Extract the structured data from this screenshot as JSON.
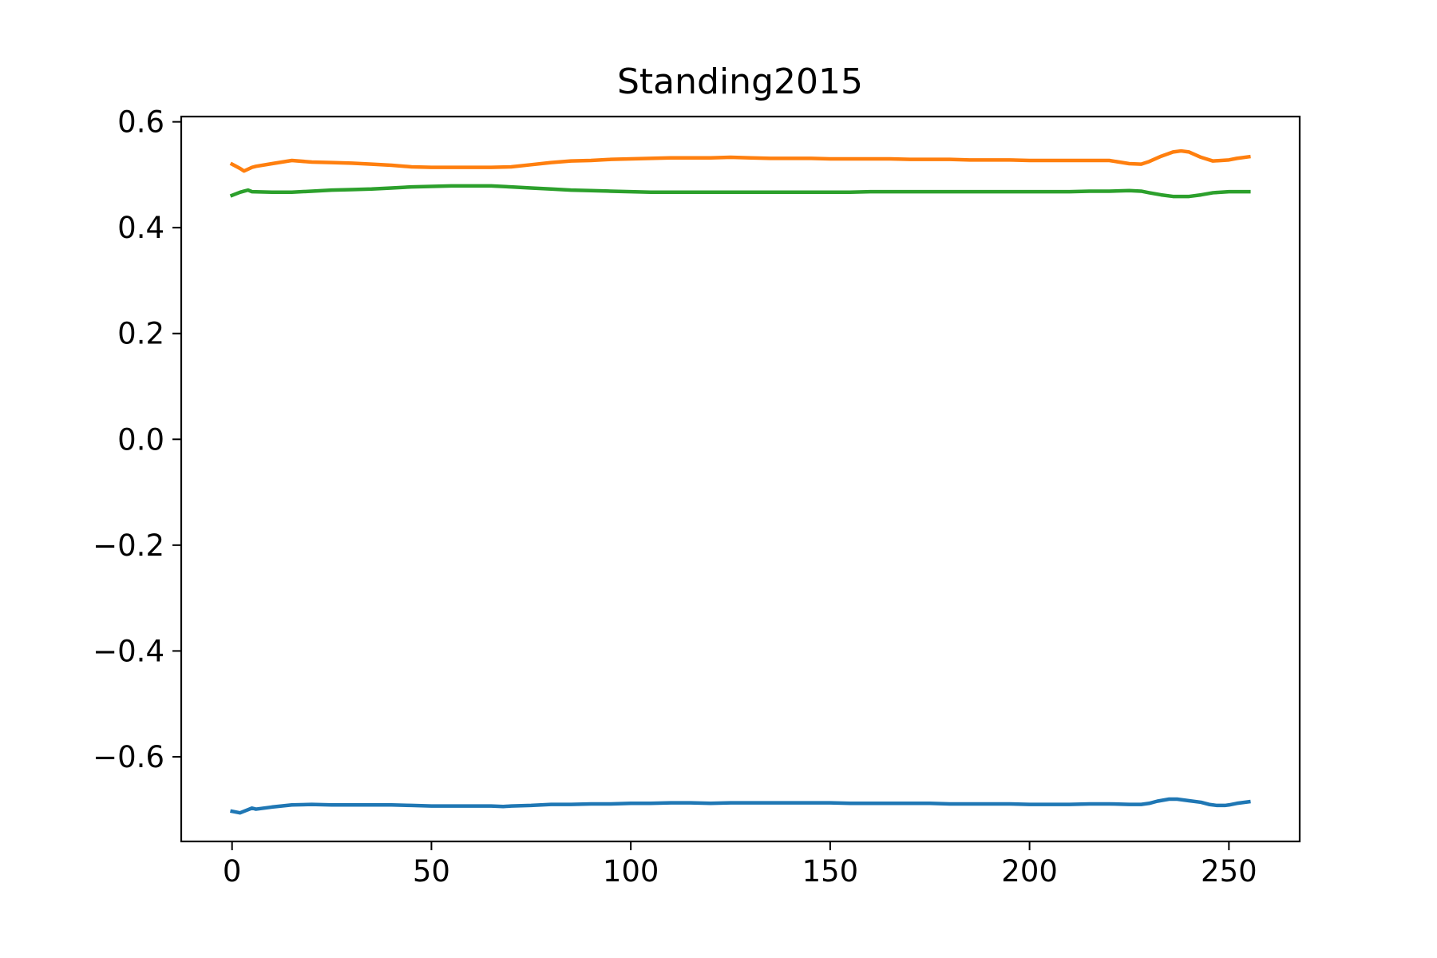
{
  "chart_data": {
    "type": "line",
    "title": "Standing2015",
    "xlabel": "",
    "ylabel": "",
    "xlim": [
      -12.75,
      267.75
    ],
    "ylim": [
      -0.76,
      0.61
    ],
    "xticks": [
      0,
      50,
      100,
      150,
      200,
      250
    ],
    "xtick_labels": [
      "0",
      "50",
      "100",
      "150",
      "200",
      "250"
    ],
    "yticks": [
      -0.6,
      -0.4,
      -0.2,
      0.0,
      0.2,
      0.4,
      0.6
    ],
    "ytick_labels": [
      "−0.6",
      "−0.4",
      "−0.2",
      "0.0",
      "0.2",
      "0.4",
      "0.6"
    ],
    "grid": false,
    "legend": "none",
    "series": [
      {
        "color": "#1f77b4",
        "x": [
          0,
          2,
          3,
          5,
          6,
          10,
          15,
          20,
          25,
          30,
          35,
          40,
          45,
          50,
          55,
          60,
          65,
          68,
          70,
          75,
          80,
          85,
          90,
          95,
          100,
          105,
          110,
          115,
          120,
          125,
          130,
          135,
          140,
          145,
          150,
          155,
          160,
          165,
          170,
          175,
          180,
          185,
          190,
          195,
          200,
          205,
          210,
          215,
          220,
          225,
          228,
          230,
          232,
          235,
          237,
          240,
          243,
          245,
          247,
          249,
          250,
          252,
          255
        ],
        "y": [
          -0.703,
          -0.706,
          -0.703,
          -0.697,
          -0.699,
          -0.695,
          -0.691,
          -0.69,
          -0.691,
          -0.691,
          -0.691,
          -0.691,
          -0.692,
          -0.693,
          -0.693,
          -0.693,
          -0.693,
          -0.694,
          -0.693,
          -0.692,
          -0.69,
          -0.69,
          -0.689,
          -0.689,
          -0.688,
          -0.688,
          -0.687,
          -0.687,
          -0.688,
          -0.687,
          -0.687,
          -0.687,
          -0.687,
          -0.687,
          -0.687,
          -0.688,
          -0.688,
          -0.688,
          -0.688,
          -0.688,
          -0.689,
          -0.689,
          -0.689,
          -0.689,
          -0.69,
          -0.69,
          -0.69,
          -0.689,
          -0.689,
          -0.69,
          -0.69,
          -0.688,
          -0.684,
          -0.68,
          -0.68,
          -0.683,
          -0.686,
          -0.69,
          -0.692,
          -0.692,
          -0.691,
          -0.688,
          -0.685
        ]
      },
      {
        "color": "#ff7f0e",
        "x": [
          0,
          2,
          3,
          5,
          6,
          10,
          15,
          20,
          25,
          30,
          35,
          40,
          45,
          50,
          55,
          60,
          65,
          70,
          75,
          80,
          85,
          90,
          95,
          100,
          105,
          110,
          115,
          120,
          125,
          130,
          135,
          140,
          145,
          150,
          155,
          160,
          165,
          170,
          175,
          180,
          185,
          190,
          195,
          200,
          205,
          210,
          215,
          220,
          225,
          228,
          230,
          233,
          236,
          238,
          240,
          243,
          246,
          250,
          252,
          255
        ],
        "y": [
          0.52,
          0.512,
          0.507,
          0.514,
          0.516,
          0.521,
          0.527,
          0.524,
          0.523,
          0.522,
          0.52,
          0.518,
          0.515,
          0.514,
          0.514,
          0.514,
          0.514,
          0.515,
          0.519,
          0.523,
          0.526,
          0.527,
          0.529,
          0.53,
          0.531,
          0.532,
          0.532,
          0.532,
          0.533,
          0.532,
          0.531,
          0.531,
          0.531,
          0.53,
          0.53,
          0.53,
          0.53,
          0.529,
          0.529,
          0.529,
          0.528,
          0.528,
          0.528,
          0.527,
          0.527,
          0.527,
          0.527,
          0.527,
          0.521,
          0.52,
          0.525,
          0.535,
          0.543,
          0.545,
          0.543,
          0.533,
          0.526,
          0.528,
          0.531,
          0.534
        ]
      },
      {
        "color": "#2ca02c",
        "x": [
          0,
          2,
          3,
          4,
          5,
          10,
          15,
          20,
          25,
          30,
          35,
          40,
          45,
          50,
          55,
          60,
          65,
          70,
          75,
          80,
          85,
          90,
          95,
          100,
          105,
          110,
          115,
          120,
          125,
          130,
          135,
          140,
          145,
          150,
          155,
          160,
          165,
          170,
          175,
          180,
          185,
          190,
          195,
          200,
          205,
          210,
          215,
          220,
          225,
          228,
          230,
          233,
          236,
          240,
          243,
          246,
          250,
          255
        ],
        "y": [
          0.461,
          0.467,
          0.469,
          0.471,
          0.468,
          0.467,
          0.467,
          0.469,
          0.471,
          0.472,
          0.473,
          0.475,
          0.477,
          0.478,
          0.479,
          0.479,
          0.479,
          0.477,
          0.475,
          0.473,
          0.471,
          0.47,
          0.469,
          0.468,
          0.467,
          0.467,
          0.467,
          0.467,
          0.467,
          0.467,
          0.467,
          0.467,
          0.467,
          0.467,
          0.467,
          0.468,
          0.468,
          0.468,
          0.468,
          0.468,
          0.468,
          0.468,
          0.468,
          0.468,
          0.468,
          0.468,
          0.469,
          0.469,
          0.47,
          0.469,
          0.466,
          0.462,
          0.459,
          0.459,
          0.462,
          0.466,
          0.468,
          0.468
        ]
      }
    ]
  }
}
